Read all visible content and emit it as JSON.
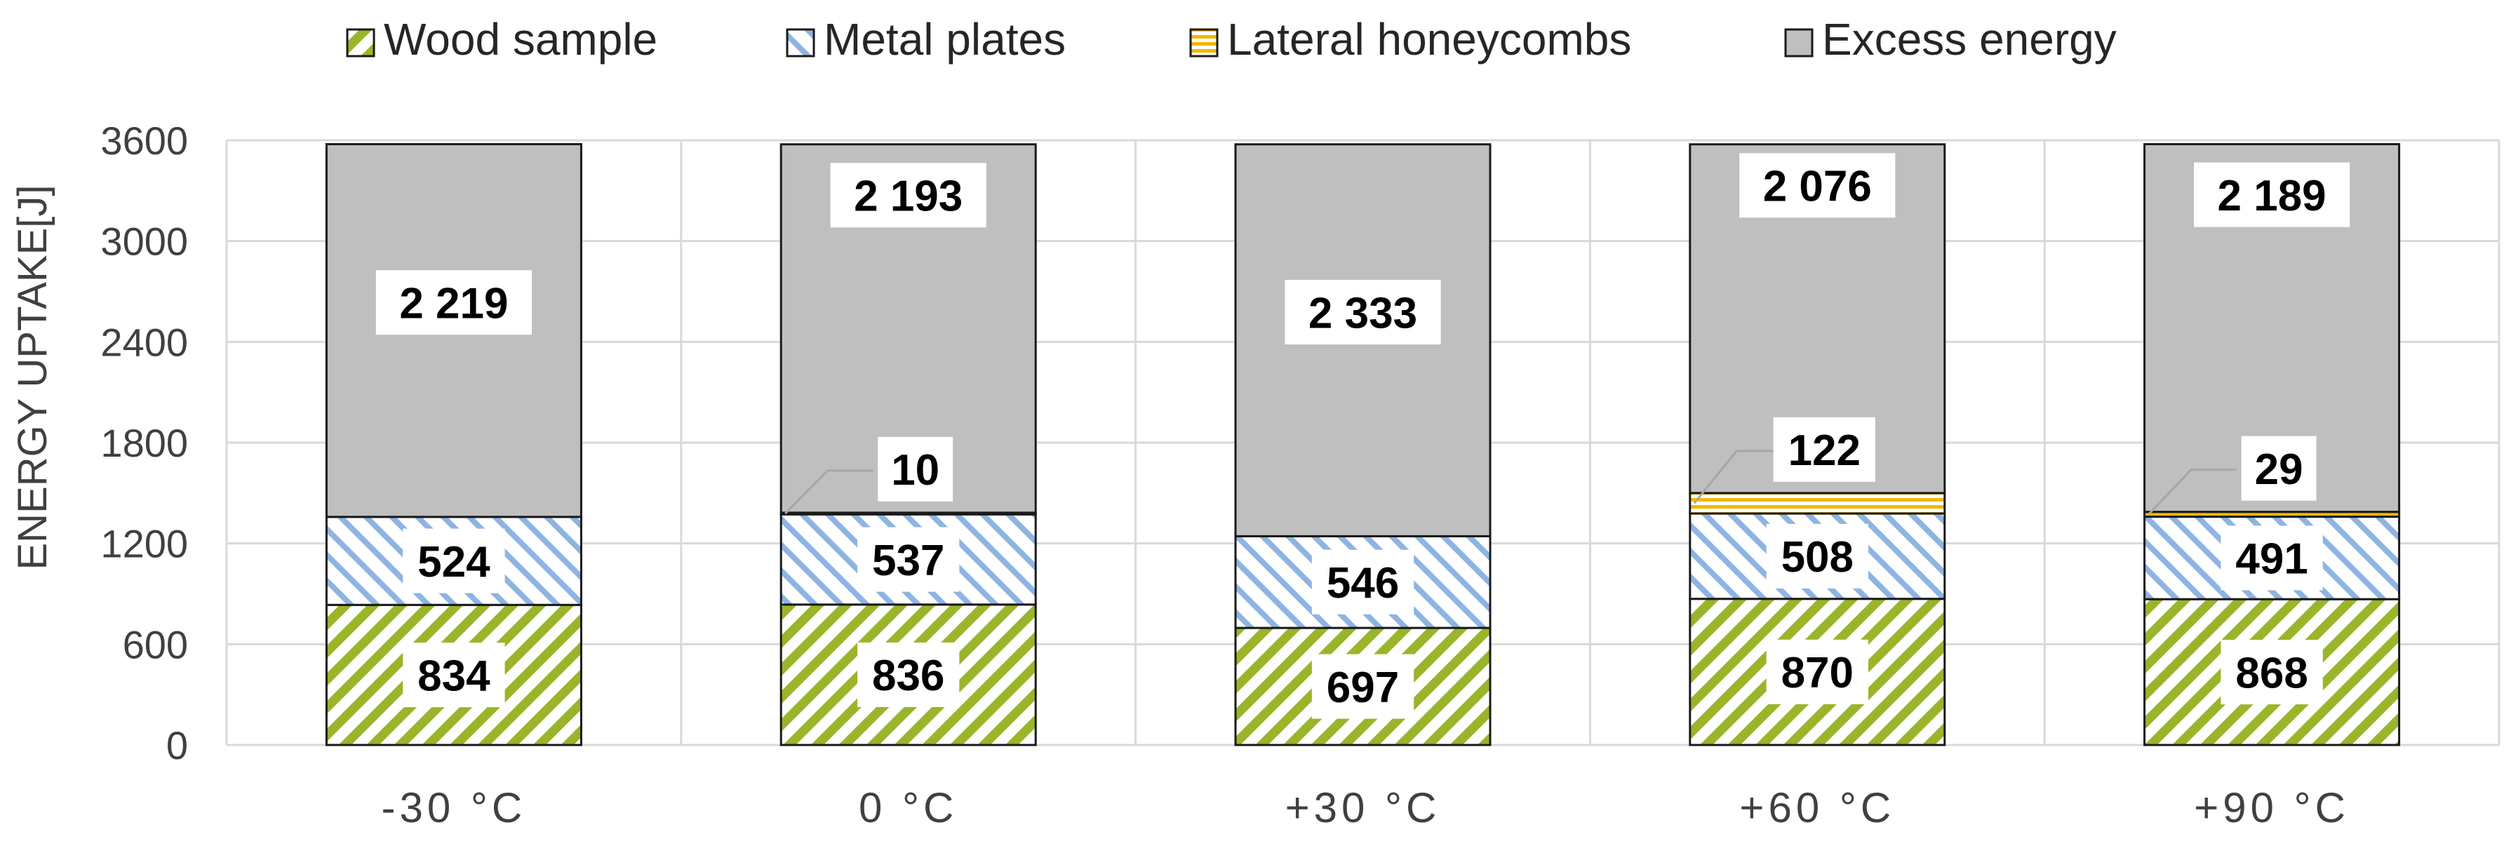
{
  "chart_data": {
    "type": "bar",
    "stacked": true,
    "categories": [
      "-30 °C",
      "0 °C",
      "+30 °C",
      "+60 °C",
      "+90 °C"
    ],
    "ylabel": "ENERGY UPTAKE[J]",
    "ylim": [
      0,
      3600
    ],
    "yticks": [
      0,
      600,
      1200,
      1800,
      2400,
      3000,
      3600
    ],
    "grid": true,
    "legend_position": "top",
    "series": [
      {
        "name": "Wood sample",
        "values": [
          834,
          836,
          697,
          870,
          868
        ],
        "labels": [
          "834",
          "836",
          "697",
          "870",
          "868"
        ],
        "pattern": "diagonal-green",
        "color": "#9ab52a"
      },
      {
        "name": "Metal plates",
        "values": [
          524,
          537,
          546,
          508,
          491
        ],
        "labels": [
          "524",
          "537",
          "546",
          "508",
          "491"
        ],
        "pattern": "diagonal-blue",
        "color": "#8eb4e3"
      },
      {
        "name": "Lateral honeycombs",
        "values": [
          0,
          10,
          0,
          122,
          29
        ],
        "labels": [
          "",
          "10",
          "",
          "122",
          "29"
        ],
        "pattern": "horizontal-yellow",
        "color": "#f2b800"
      },
      {
        "name": "Excess energy",
        "values": [
          2219,
          2193,
          2333,
          2076,
          2189
        ],
        "labels": [
          "2 219",
          "2 193",
          "2 333",
          "2 076",
          "2 189"
        ],
        "pattern": "solid-gray",
        "color": "#bfbfbf"
      }
    ]
  }
}
